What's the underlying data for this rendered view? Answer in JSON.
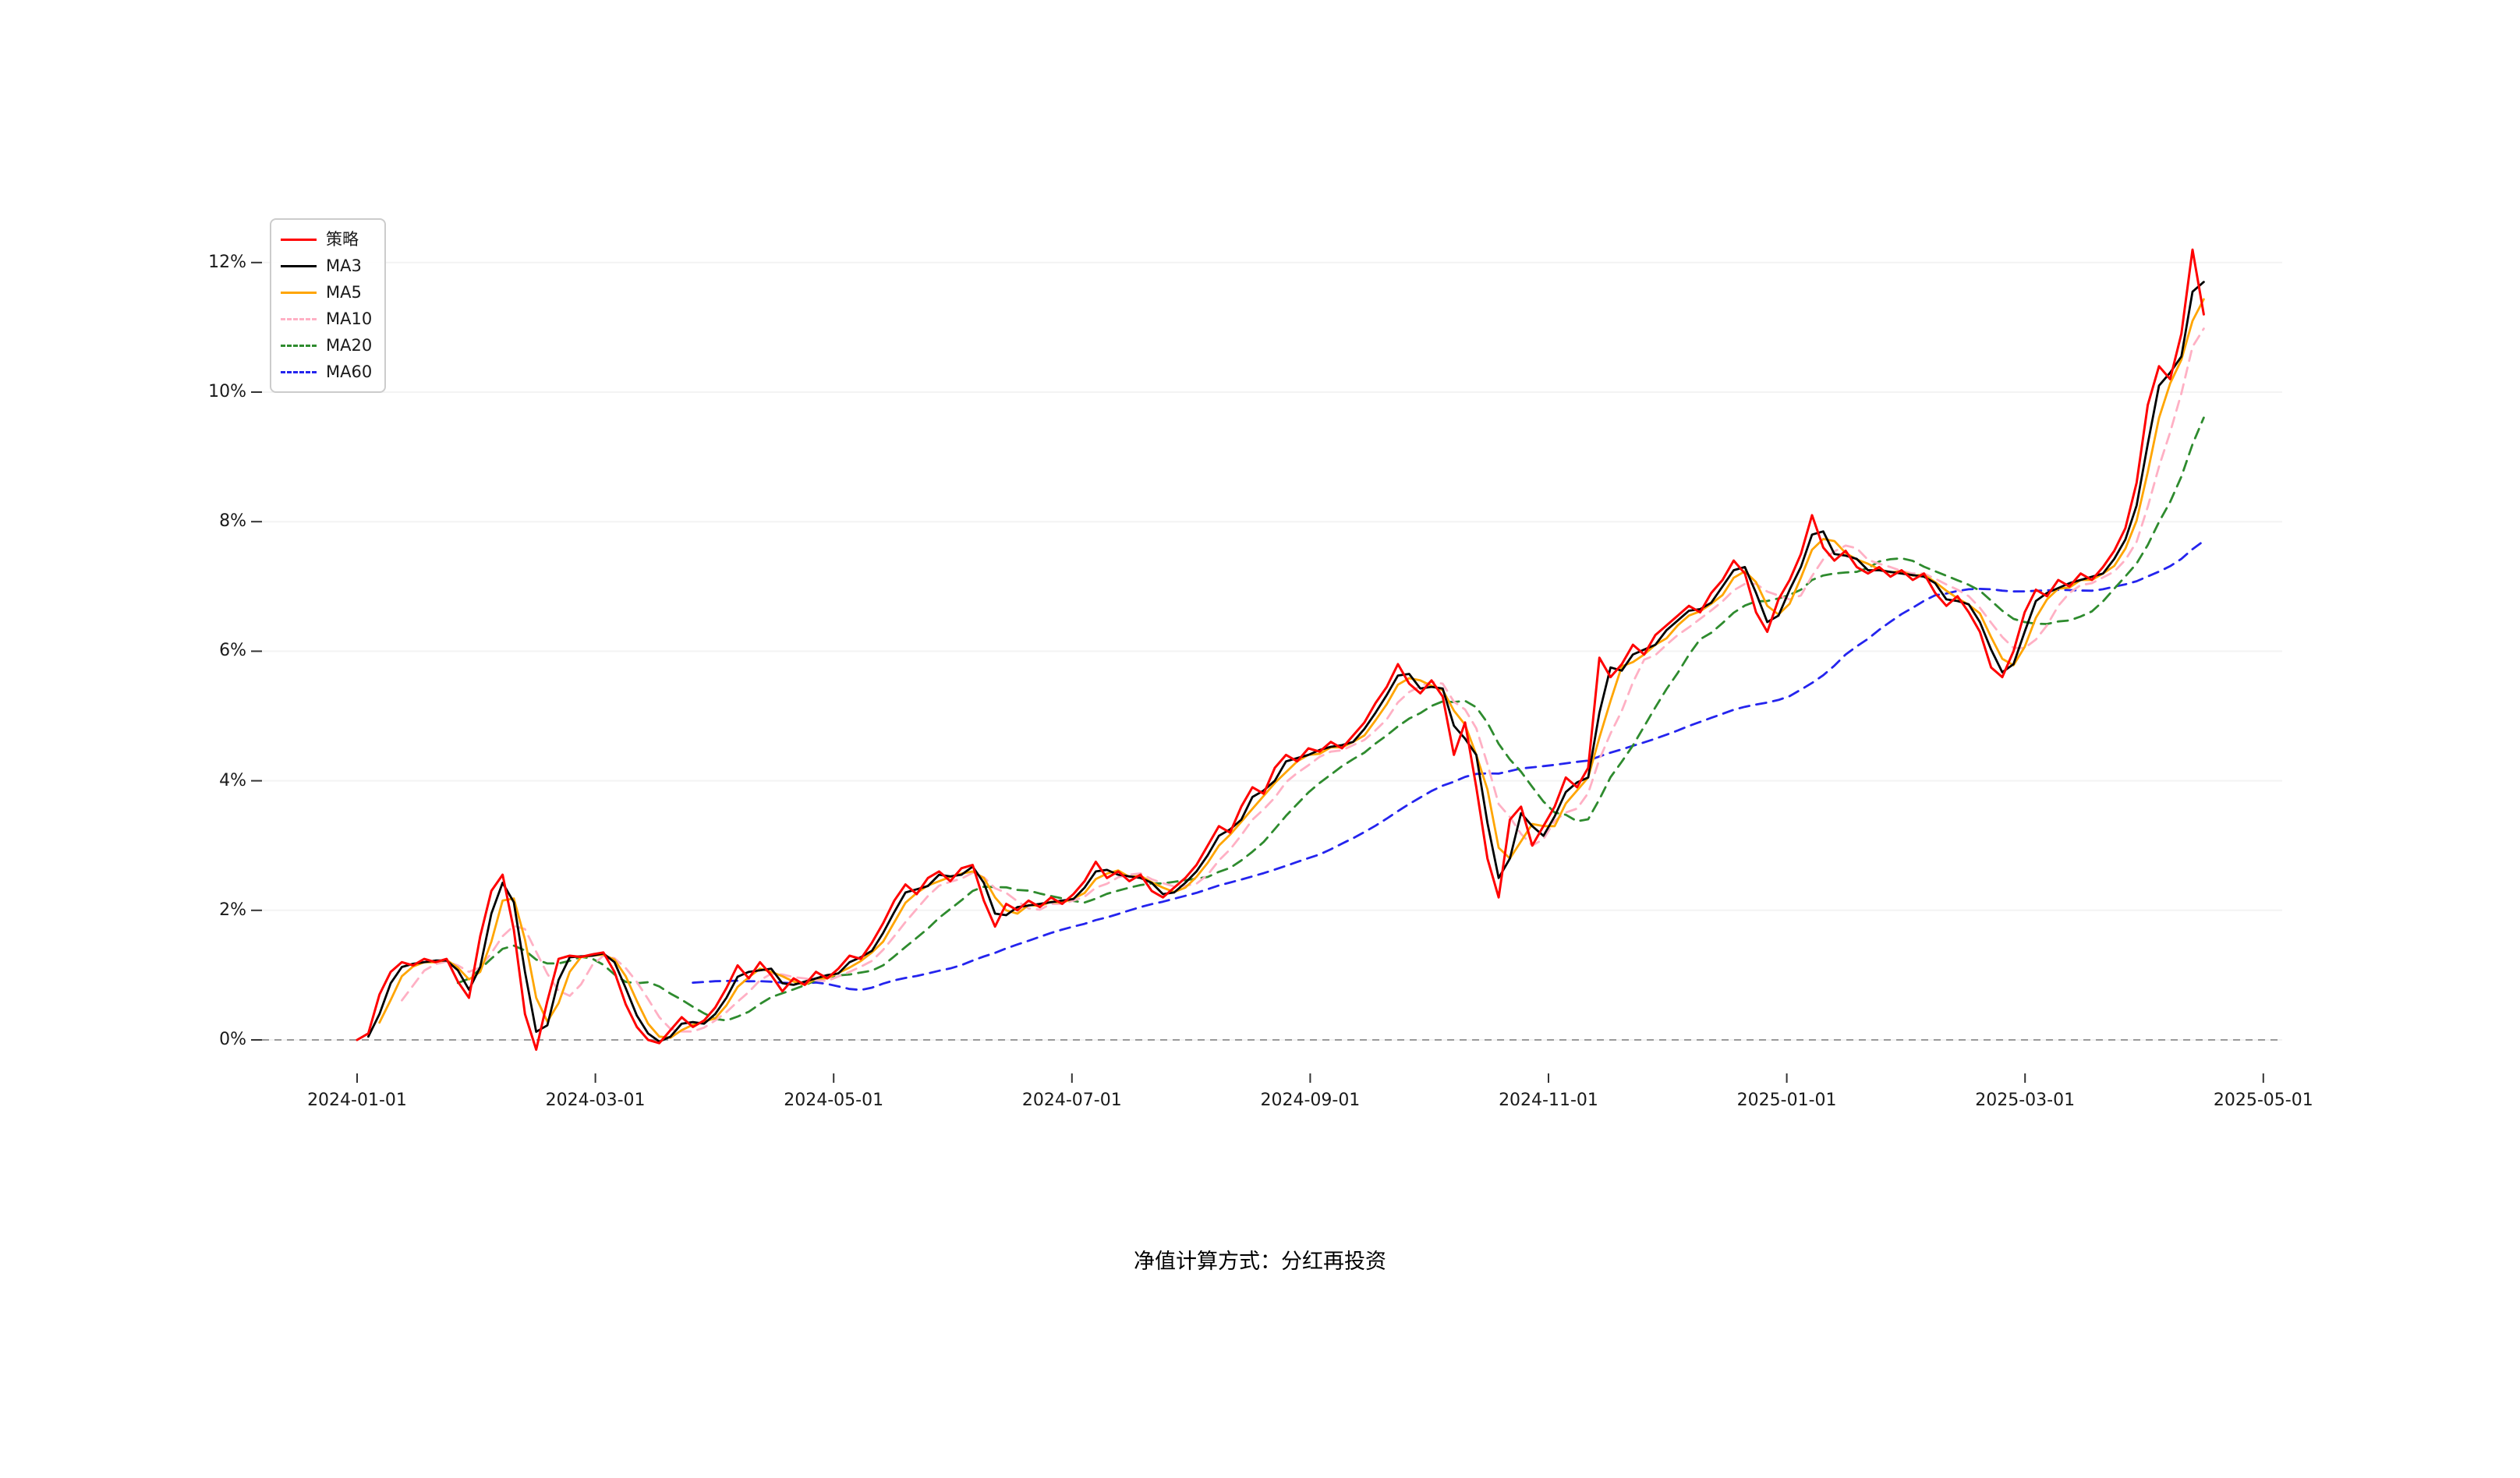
{
  "page": {
    "background_color": "#ffffff",
    "caption": "净值计算方式：分红再投资"
  },
  "chart_data": {
    "type": "line",
    "title": "",
    "xlabel": "",
    "ylabel": "",
    "legend_position": "upper left",
    "grid": "off",
    "zero_line": {
      "value": 0,
      "style": "dashed",
      "color": "#999999"
    },
    "x_ticks": [
      "2024-01-01",
      "2024-03-01",
      "2024-05-01",
      "2024-07-01",
      "2024-09-01",
      "2024-11-01",
      "2025-01-01",
      "2025-03-01",
      "2025-05-01"
    ],
    "x_tick_months_from_start": [
      0,
      2,
      4,
      6,
      8,
      10,
      12,
      14,
      16
    ],
    "x_range_months": [
      -0.8,
      16.2
    ],
    "y_ticks": [
      "0%",
      "2%",
      "4%",
      "6%",
      "8%",
      "10%",
      "12%"
    ],
    "y_tick_values": [
      0,
      2,
      4,
      6,
      8,
      10,
      12
    ],
    "y_range": [
      -0.55,
      12.85
    ],
    "series": [
      {
        "key": "strategy",
        "name": "策略",
        "color": "#ff0000",
        "style": "solid",
        "kind": "strategy"
      },
      {
        "key": "ma3",
        "name": "MA3",
        "color": "#000000",
        "style": "solid",
        "kind": "ma",
        "window_days": 3
      },
      {
        "key": "ma5",
        "name": "MA5",
        "color": "#ffa500",
        "style": "solid",
        "kind": "ma",
        "window_days": 5
      },
      {
        "key": "ma10",
        "name": "MA10",
        "color": "#ffb0c4",
        "style": "dashed",
        "kind": "ma",
        "window_days": 10
      },
      {
        "key": "ma20",
        "name": "MA20",
        "color": "#2e8b2e",
        "style": "dashed",
        "kind": "ma",
        "window_days": 20
      },
      {
        "key": "ma60",
        "name": "MA60",
        "color": "#2424ee",
        "style": "dashed",
        "kind": "ma",
        "window_days": 60
      }
    ],
    "strategy_series": {
      "start_date": "2024-01-01",
      "end_date": "2025-04-16",
      "span_months": 15.5,
      "unit": "percent",
      "approx_trading_days": 320,
      "values": [
        0.0,
        0.1,
        0.7,
        1.05,
        1.2,
        1.15,
        1.25,
        1.2,
        1.25,
        0.9,
        0.65,
        1.6,
        2.3,
        2.55,
        1.7,
        0.4,
        -0.15,
        0.6,
        1.25,
        1.3,
        1.28,
        1.32,
        1.35,
        1.05,
        0.55,
        0.2,
        0.0,
        -0.05,
        0.15,
        0.35,
        0.2,
        0.3,
        0.5,
        0.8,
        1.15,
        0.95,
        1.2,
        1.0,
        0.75,
        0.95,
        0.85,
        1.05,
        0.95,
        1.1,
        1.3,
        1.25,
        1.5,
        1.8,
        2.15,
        2.4,
        2.25,
        2.5,
        2.6,
        2.45,
        2.65,
        2.7,
        2.15,
        1.75,
        2.1,
        2.0,
        2.15,
        2.05,
        2.2,
        2.1,
        2.25,
        2.45,
        2.75,
        2.5,
        2.6,
        2.45,
        2.55,
        2.3,
        2.2,
        2.35,
        2.5,
        2.7,
        3.0,
        3.3,
        3.2,
        3.6,
        3.9,
        3.8,
        4.2,
        4.4,
        4.3,
        4.5,
        4.45,
        4.6,
        4.5,
        4.7,
        4.9,
        5.2,
        5.45,
        5.8,
        5.5,
        5.35,
        5.55,
        5.3,
        4.4,
        4.9,
        3.9,
        2.8,
        2.2,
        3.4,
        3.6,
        3.0,
        3.3,
        3.6,
        4.05,
        3.9,
        4.2,
        5.9,
        5.6,
        5.8,
        6.1,
        5.95,
        6.25,
        6.4,
        6.55,
        6.7,
        6.6,
        6.9,
        7.1,
        7.4,
        7.2,
        6.6,
        6.3,
        6.8,
        7.1,
        7.5,
        8.1,
        7.6,
        7.4,
        7.55,
        7.3,
        7.2,
        7.3,
        7.15,
        7.25,
        7.1,
        7.2,
        6.9,
        6.7,
        6.85,
        6.6,
        6.3,
        5.75,
        5.6,
        6.0,
        6.6,
        6.95,
        6.85,
        7.1,
        7.0,
        7.2,
        7.1,
        7.3,
        7.55,
        7.9,
        8.6,
        9.8,
        10.4,
        10.2,
        10.9,
        12.2,
        11.2
      ]
    }
  }
}
